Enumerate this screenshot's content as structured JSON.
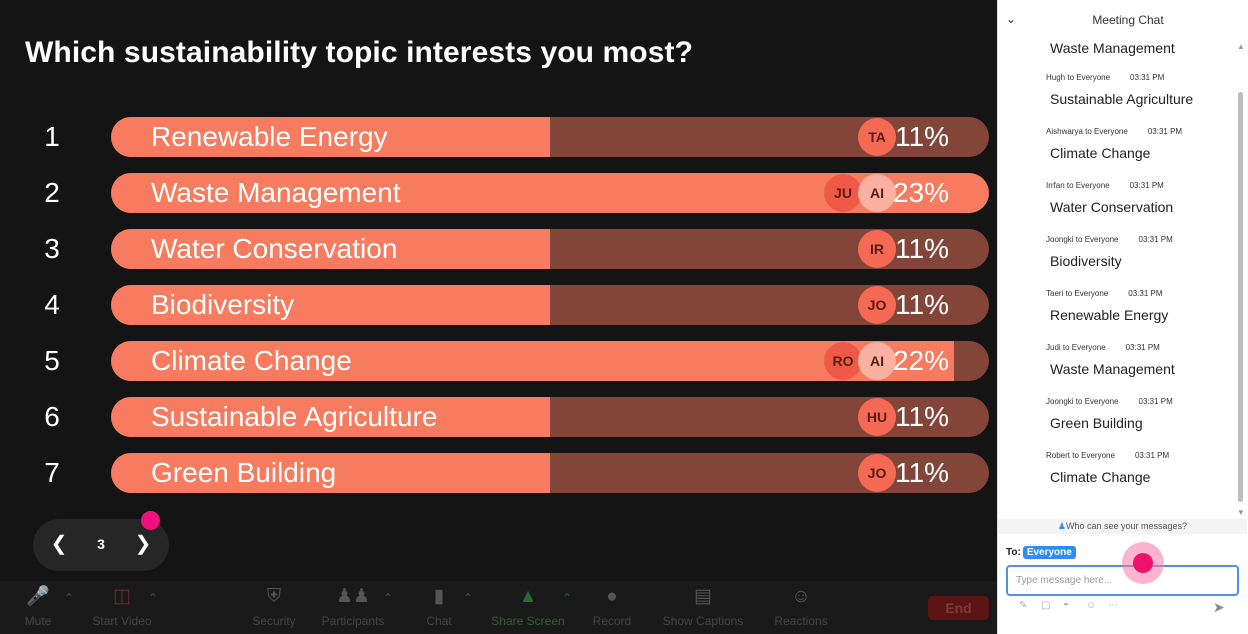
{
  "poll": {
    "question": "Which sustainability topic interests you most?",
    "options": [
      {
        "num": "1",
        "label": "Renewable Energy",
        "percent": "11%",
        "fraction": 0.5,
        "avatar": "TA",
        "avatar_back": ""
      },
      {
        "num": "2",
        "label": "Waste Management",
        "percent": "23%",
        "fraction": 1.0,
        "avatar": "AI",
        "avatar_back": "JU"
      },
      {
        "num": "3",
        "label": "Water Conservation",
        "percent": "11%",
        "fraction": 0.5,
        "avatar": "IR",
        "avatar_back": ""
      },
      {
        "num": "4",
        "label": "Biodiversity",
        "percent": "11%",
        "fraction": 0.5,
        "avatar": "JO",
        "avatar_back": ""
      },
      {
        "num": "5",
        "label": "Climate Change",
        "percent": "22%",
        "fraction": 0.96,
        "avatar": "AI",
        "avatar_back": "RO"
      },
      {
        "num": "6",
        "label": "Sustainable Agriculture",
        "percent": "11%",
        "fraction": 0.5,
        "avatar": "HU",
        "avatar_back": ""
      },
      {
        "num": "7",
        "label": "Green Building",
        "percent": "11%",
        "fraction": 0.5,
        "avatar": "JO",
        "avatar_back": ""
      }
    ],
    "colors": {
      "fill": "#f77b5f",
      "track": "#83453a"
    }
  },
  "pager": {
    "prev_icon": "chevron-left-icon",
    "page": "3",
    "next_icon": "chevron-right-icon"
  },
  "toolbar": {
    "mute": "Mute",
    "start_video": "Start Video",
    "security": "Security",
    "participants": "Participants",
    "chat": "Chat",
    "share_screen": "Share Screen",
    "record": "Record",
    "show_captions": "Show Captions",
    "reactions": "Reactions",
    "end": "End"
  },
  "chat": {
    "title": "Meeting Chat",
    "first_message": "Waste Management",
    "messages": [
      {
        "sender": "Hugh to Everyone",
        "time": "03:31 PM",
        "text": "Sustainable Agriculture"
      },
      {
        "sender": "Aishwarya to Everyone",
        "time": "03:31 PM",
        "text": "Climate Change"
      },
      {
        "sender": "Irrfan to Everyone",
        "time": "03:31 PM",
        "text": "Water Conservation"
      },
      {
        "sender": "Joongki to Everyone",
        "time": "03:31 PM",
        "text": "Biodiversity"
      },
      {
        "sender": "Taeri to Everyone",
        "time": "03:31 PM",
        "text": "Renewable Energy"
      },
      {
        "sender": "Judi to Everyone",
        "time": "03:31 PM",
        "text": "Waste Management"
      },
      {
        "sender": "Joongki to Everyone",
        "time": "03:31 PM",
        "text": "Green Building"
      },
      {
        "sender": "Robert to Everyone",
        "time": "03:31 PM",
        "text": "Climate Change"
      }
    ],
    "who_can_see": "Who can see your messages?",
    "to_label": "To:",
    "to_value": "Everyone",
    "input_placeholder": "Type message here..."
  }
}
